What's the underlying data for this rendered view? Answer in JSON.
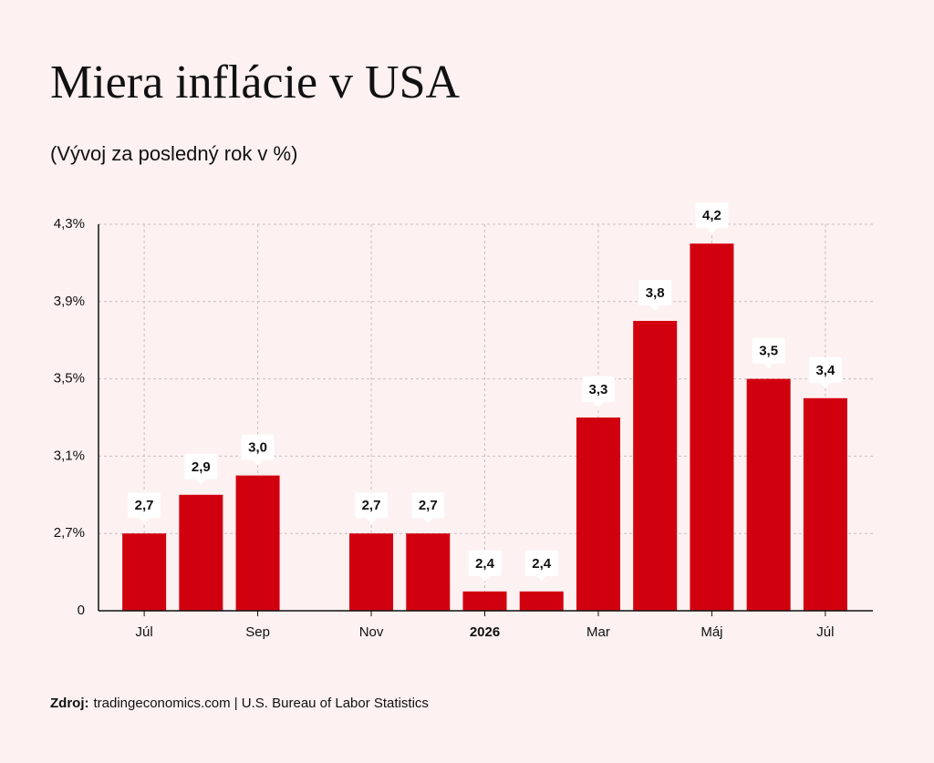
{
  "chart_data": {
    "type": "bar",
    "title": "Miera inflácie v USA",
    "subtitle": "(Vývoj za posledný rok v %)",
    "categories": [
      "Júl",
      null,
      "Sep",
      null,
      "Nov",
      null,
      "2026",
      null,
      "Mar",
      null,
      "Máj",
      null,
      "Júl"
    ],
    "values": [
      2.7,
      2.9,
      3.0,
      null,
      2.7,
      2.7,
      2.4,
      2.4,
      3.3,
      3.8,
      4.2,
      3.5,
      3.4
    ],
    "value_labels": [
      "2,7",
      "2,9",
      "3,0",
      null,
      "2,7",
      "2,7",
      "2,4",
      "2,4",
      "3,3",
      "3,8",
      "4,2",
      "3,5",
      "3,4"
    ],
    "color": "#d1000f",
    "ylim": [
      2.3,
      4.3
    ],
    "yticks": [
      0,
      {
        "value": 2.7,
        "label": "2,7%"
      },
      {
        "value": 3.1,
        "label": "3,1%"
      },
      {
        "value": 3.5,
        "label": "3,5%"
      },
      {
        "value": 3.9,
        "label": "3,9%"
      },
      {
        "value": 4.3,
        "label": "4,3%"
      }
    ],
    "grid": true,
    "source_label": "Zdroj:",
    "source": "tradingeconomics.com | U.S. Bureau of Labor Statistics"
  }
}
